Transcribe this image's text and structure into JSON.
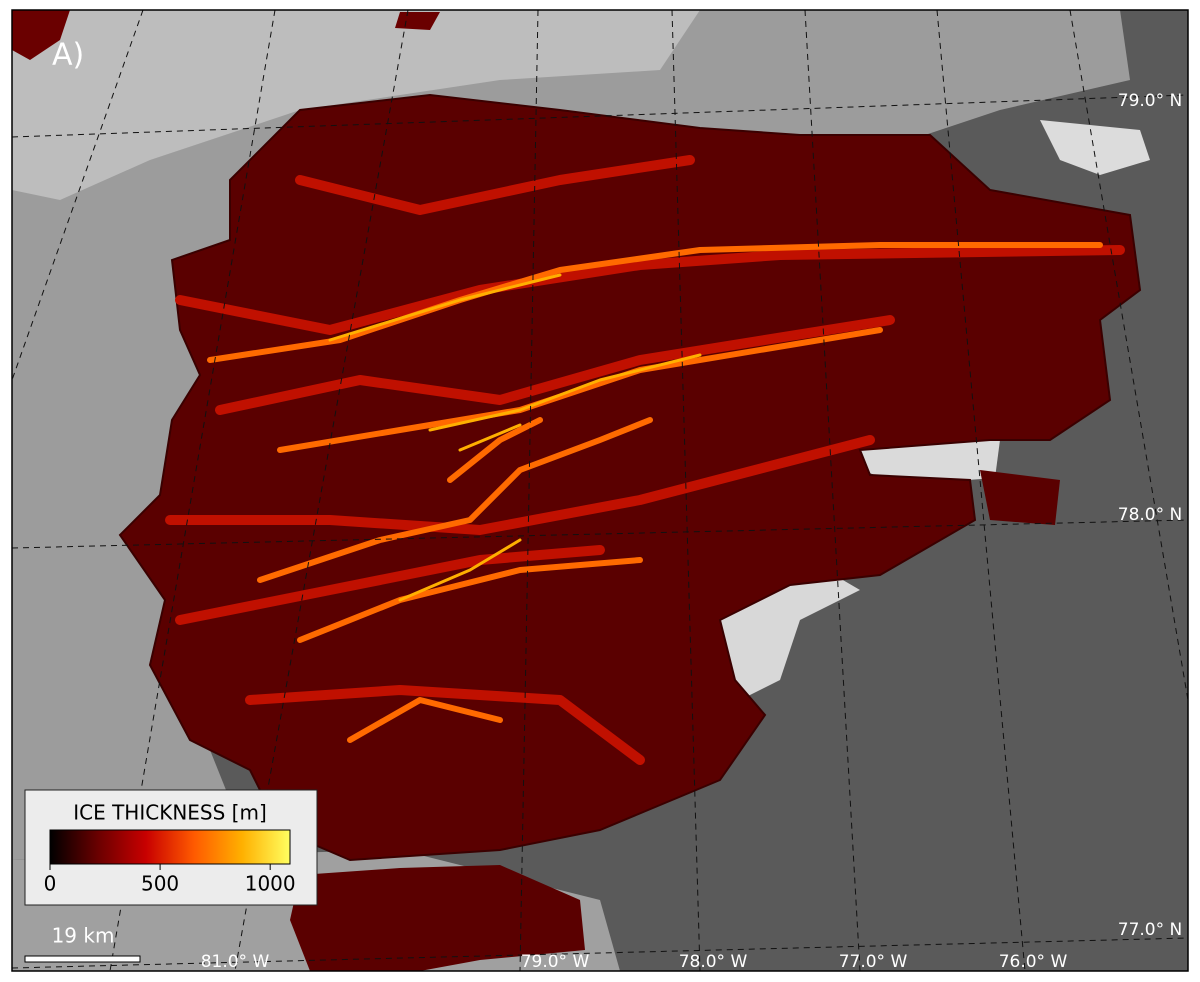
{
  "panel_label": "A)",
  "latitude_labels": [
    "79.0° N",
    "78.0° N",
    "77.0° N"
  ],
  "longitude_labels": [
    "81.0° W",
    "79.0° W",
    "78.0° W",
    "77.0° W",
    "76.0° W"
  ],
  "colorbar": {
    "title": "ICE THICKNESS [m]",
    "lim": [
      0,
      1090
    ],
    "ticks": [
      0,
      500,
      1000
    ],
    "colors": [
      "#000000",
      "#6a0000",
      "#c80000",
      "#ff5a00",
      "#ffb000",
      "#ffff60"
    ]
  },
  "scale_bar": {
    "label": "19 km"
  }
}
